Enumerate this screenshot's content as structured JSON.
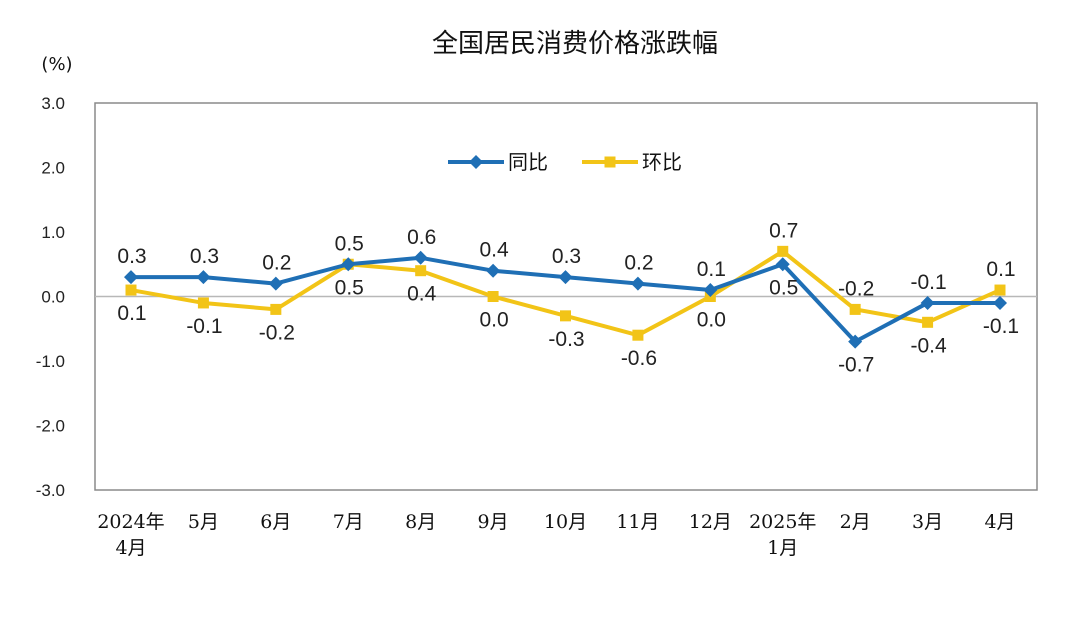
{
  "chart_data": {
    "type": "line",
    "title": "全国居民消费价格涨跌幅",
    "ylabel": "(%)",
    "xlabel": "",
    "ylim": [
      -3.0,
      3.0
    ],
    "yticks": [
      3.0,
      2.0,
      1.0,
      0.0,
      -1.0,
      -2.0,
      -3.0
    ],
    "ytick_labels": [
      "3.0",
      "2.0",
      "1.0",
      "0.0",
      "-1.0",
      "-2.0",
      "-3.0"
    ],
    "categories": [
      [
        "2024年",
        "4月"
      ],
      [
        "5月"
      ],
      [
        "6月"
      ],
      [
        "7月"
      ],
      [
        "8月"
      ],
      [
        "9月"
      ],
      [
        "10月"
      ],
      [
        "11月"
      ],
      [
        "12月"
      ],
      [
        "2025年",
        "1月"
      ],
      [
        "2月"
      ],
      [
        "3月"
      ],
      [
        "4月"
      ]
    ],
    "grid": false,
    "legend": "top-center",
    "series": [
      {
        "name": "同比",
        "color": "#1F6FB5",
        "marker": "diamond",
        "values": [
          0.3,
          0.3,
          0.2,
          0.5,
          0.6,
          0.4,
          0.3,
          0.2,
          0.1,
          0.5,
          -0.7,
          -0.1,
          -0.1
        ],
        "labels": [
          "0.3",
          "0.3",
          "0.2",
          "0.5",
          "0.6",
          "0.4",
          "0.3",
          "0.2",
          "0.1",
          "0.5",
          "-0.7",
          "-0.1",
          "-0.1"
        ]
      },
      {
        "name": "环比",
        "color": "#F2C417",
        "marker": "square",
        "values": [
          0.1,
          -0.1,
          -0.2,
          0.5,
          0.4,
          0.0,
          -0.3,
          -0.6,
          0.0,
          0.7,
          -0.2,
          -0.4,
          0.1
        ],
        "labels": [
          "0.1",
          "-0.1",
          "-0.2",
          "0.5",
          "0.4",
          "0.0",
          "-0.3",
          "-0.6",
          "0.0",
          "0.7",
          "-0.2",
          "-0.4",
          "0.1"
        ]
      }
    ]
  }
}
